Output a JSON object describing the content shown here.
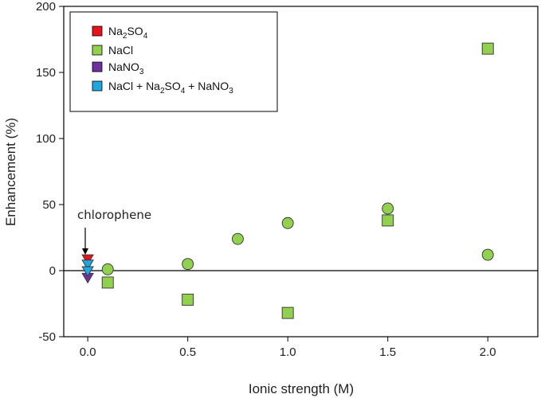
{
  "colors": {
    "Na2SO4": "#e8141c",
    "NaCl": "#92d050",
    "NaNO3": "#7030a0",
    "Mix": "#1fa8e0"
  },
  "legend_labels": {
    "na2so4": {
      "a": "Na",
      "b": "2",
      "c": "SO",
      "d": "4"
    },
    "nacl": "NaCl",
    "nano3": {
      "a": "NaNO",
      "b": "3"
    },
    "mix": {
      "a": "NaCl + Na",
      "b": "2",
      "c": "SO",
      "d": "4",
      "e": " + NaNO",
      "f": "3"
    }
  },
  "chart_data": {
    "type": "scatter",
    "xlabel": "Ionic strength (M)",
    "ylabel": "Enhancement (%)",
    "xlim": [
      -0.12,
      2.25
    ],
    "ylim": [
      -50,
      200
    ],
    "xticks": [
      "0.0",
      "0.5",
      "1.0",
      "1.5",
      "2.0"
    ],
    "yticks": [
      "-50",
      "0",
      "50",
      "100",
      "150",
      "200"
    ],
    "reference_line_y": 0,
    "legend_position": "top-left",
    "annotation": {
      "text": "chlorophene",
      "x": 0,
      "y": 10
    },
    "series": [
      {
        "name": "Na2SO4",
        "marker": "triangle-down",
        "color": "#e8141c",
        "x": [
          0
        ],
        "y": [
          9
        ]
      },
      {
        "name": "NaCl",
        "marker": "square",
        "color": "#92d050",
        "x": [
          0.1,
          0.5,
          1.0,
          1.5,
          2.0
        ],
        "y": [
          -9,
          -22,
          -32,
          38,
          168
        ]
      },
      {
        "name": "NaCl",
        "marker": "circle",
        "color": "#92d050",
        "x": [
          0.1,
          0.5,
          0.75,
          1.0,
          1.5,
          2.0
        ],
        "y": [
          1,
          5,
          24,
          36,
          47,
          12
        ]
      },
      {
        "name": "NaNO3",
        "marker": "triangle-down",
        "color": "#7030a0",
        "x": [
          0
        ],
        "y": [
          -5
        ]
      },
      {
        "name": "NaCl + Na2SO4 + NaNO3",
        "marker": "triangle-down",
        "color": "#1fa8e0",
        "x": [
          0,
          0
        ],
        "y": [
          5,
          0
        ]
      }
    ]
  }
}
